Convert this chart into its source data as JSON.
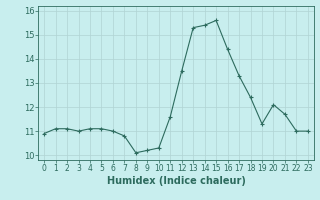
{
  "x": [
    0,
    1,
    2,
    3,
    4,
    5,
    6,
    7,
    8,
    9,
    10,
    11,
    12,
    13,
    14,
    15,
    16,
    17,
    18,
    19,
    20,
    21,
    22,
    23
  ],
  "y": [
    10.9,
    11.1,
    11.1,
    11.0,
    11.1,
    11.1,
    11.0,
    10.8,
    10.1,
    10.2,
    10.3,
    11.6,
    13.5,
    15.3,
    15.4,
    15.6,
    14.4,
    13.3,
    12.4,
    11.3,
    12.1,
    11.7,
    11.0,
    11.0
  ],
  "line_color": "#2d6b5e",
  "marker": "+",
  "bg_color": "#c8eeee",
  "grid_color": "#b0d4d4",
  "xlabel": "Humidex (Indice chaleur)",
  "xlabel_fontsize": 7,
  "xlabel_color": "#2d6b5e",
  "tick_color": "#2d6b5e",
  "tick_fontsize": 5.5,
  "ylim": [
    9.8,
    16.2
  ],
  "yticks": [
    10,
    11,
    12,
    13,
    14,
    15,
    16
  ],
  "xticks": [
    0,
    1,
    2,
    3,
    4,
    5,
    6,
    7,
    8,
    9,
    10,
    11,
    12,
    13,
    14,
    15,
    16,
    17,
    18,
    19,
    20,
    21,
    22,
    23
  ]
}
